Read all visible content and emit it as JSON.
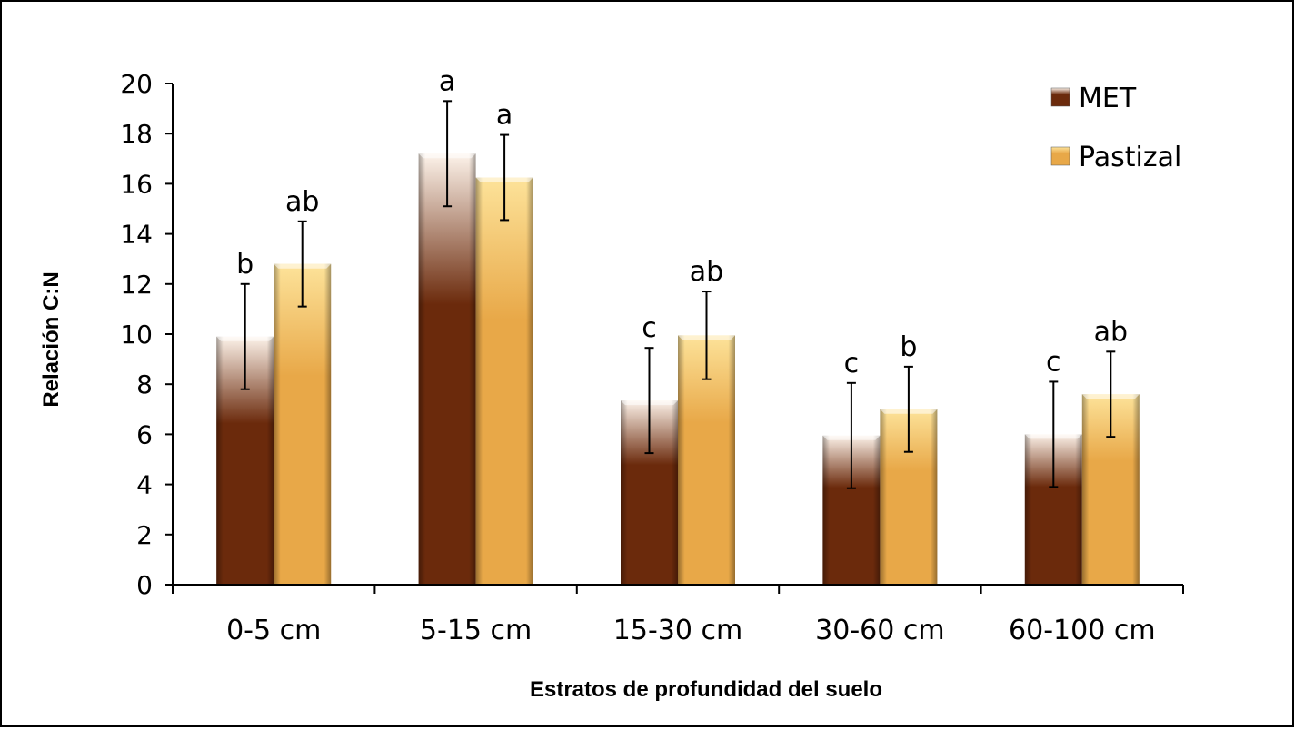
{
  "chart_data": {
    "type": "bar",
    "categories": [
      "0-5 cm",
      "5-15 cm",
      "15-30 cm",
      "30-60 cm",
      "60-100 cm"
    ],
    "series": [
      {
        "name": "MET",
        "values": [
          9.9,
          17.2,
          7.35,
          5.95,
          6.0
        ],
        "errors": [
          2.1,
          2.1,
          2.1,
          2.1,
          2.1
        ],
        "letters": [
          "b",
          "a",
          "c",
          "c",
          "c"
        ],
        "color": "#6b2a0c",
        "highlight": "#fdf3ea"
      },
      {
        "name": "Pastizal",
        "values": [
          12.8,
          16.25,
          9.95,
          7.0,
          7.6
        ],
        "errors": [
          1.7,
          1.7,
          1.75,
          1.7,
          1.7
        ],
        "letters": [
          "ab",
          "a",
          "ab",
          "b",
          "ab"
        ],
        "color": "#e8a848",
        "highlight": "#fde39a"
      }
    ],
    "xlabel": "Estratos de profundidad del suelo",
    "ylabel": "Relación C:N",
    "ylim": [
      0,
      20
    ],
    "yticks": [
      "0",
      "2",
      "4",
      "6",
      "8",
      "10",
      "12",
      "14",
      "16",
      "18",
      "20"
    ],
    "legend": {
      "position": "top-right"
    },
    "grid": false
  }
}
